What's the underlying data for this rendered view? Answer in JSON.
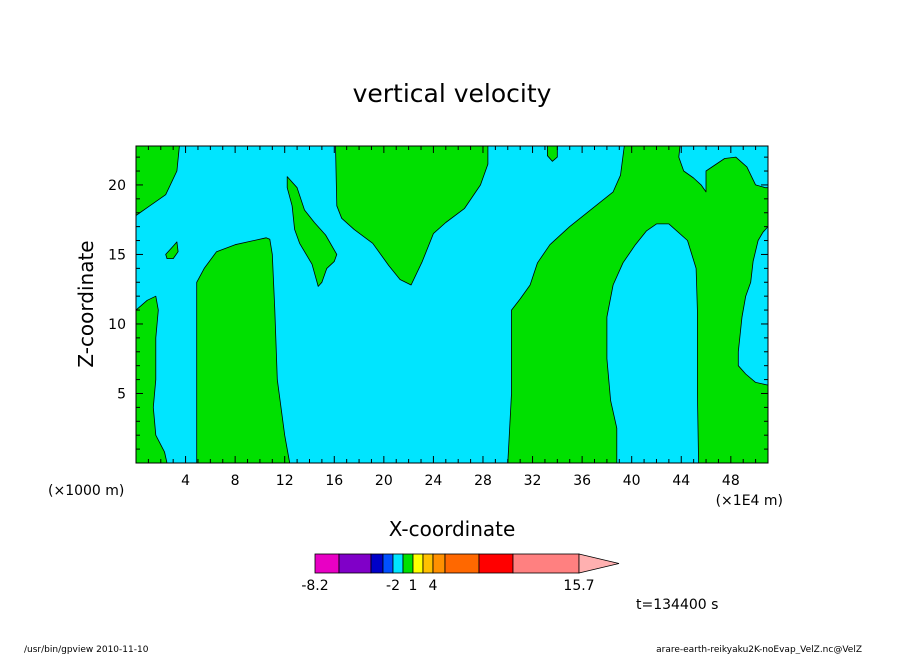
{
  "chart_data": {
    "type": "contour",
    "title": "vertical velocity",
    "xlabel": "X-coordinate",
    "ylabel": "Z-coordinate",
    "x_unit_left": "(×1000 m)",
    "x_unit_right": "(×1E4 m)",
    "xlim": [
      0,
      51
    ],
    "ylim": [
      0,
      22.8
    ],
    "x_ticks": [
      4,
      8,
      12,
      16,
      20,
      24,
      28,
      32,
      36,
      40,
      44,
      48
    ],
    "y_ticks": [
      5,
      10,
      15,
      20
    ],
    "field_colors": {
      "background": "#00e5ff",
      "positive_region": "#00e000"
    },
    "positive_regions": [
      {
        "name": "upper-left",
        "points": [
          [
            0,
            22.8
          ],
          [
            3.5,
            22.8
          ],
          [
            3.3,
            21
          ],
          [
            2.4,
            19.3
          ],
          [
            0.8,
            18.3
          ],
          [
            0,
            17.8
          ]
        ]
      },
      {
        "name": "left-strip",
        "points": [
          [
            0,
            11
          ],
          [
            0.9,
            11.7
          ],
          [
            1.6,
            12
          ],
          [
            1.8,
            11
          ],
          [
            1.6,
            9
          ],
          [
            1.6,
            6
          ],
          [
            1.4,
            4
          ],
          [
            1.6,
            2
          ],
          [
            2.3,
            0.8
          ],
          [
            2.5,
            0
          ],
          [
            0,
            0
          ]
        ]
      },
      {
        "name": "left-bubble",
        "points": [
          [
            2.4,
            15
          ],
          [
            3,
            15.6
          ],
          [
            3.3,
            15.9
          ],
          [
            3.4,
            15.2
          ],
          [
            3,
            14.7
          ],
          [
            2.5,
            14.7
          ]
        ]
      },
      {
        "name": "slab-8-12",
        "points": [
          [
            4.9,
            0
          ],
          [
            4.9,
            13
          ],
          [
            5.5,
            14
          ],
          [
            6.5,
            15.2
          ],
          [
            8,
            15.7
          ],
          [
            10.5,
            16.2
          ],
          [
            10.8,
            16.1
          ],
          [
            11,
            15
          ],
          [
            11.2,
            11
          ],
          [
            11.4,
            6
          ],
          [
            12,
            2
          ],
          [
            12.4,
            0
          ]
        ]
      },
      {
        "name": "tongue-14",
        "points": [
          [
            12.2,
            20.6
          ],
          [
            13,
            19.8
          ],
          [
            13.6,
            18.2
          ],
          [
            14.4,
            17.3
          ],
          [
            15.3,
            16.4
          ],
          [
            16.2,
            15
          ],
          [
            16,
            14.5
          ],
          [
            15.4,
            14
          ],
          [
            15,
            13
          ],
          [
            14.7,
            12.7
          ],
          [
            14.2,
            14.3
          ],
          [
            13.2,
            15.8
          ],
          [
            12.8,
            16.8
          ],
          [
            12.6,
            18.5
          ],
          [
            12.2,
            19.8
          ]
        ]
      },
      {
        "name": "top-center",
        "points": [
          [
            16.1,
            22.8
          ],
          [
            28.4,
            22.8
          ],
          [
            28.4,
            21.5
          ],
          [
            27.8,
            20
          ],
          [
            26.5,
            18.3
          ],
          [
            25,
            17.3
          ],
          [
            24,
            16.5
          ],
          [
            23.1,
            14.5
          ],
          [
            22.2,
            12.8
          ],
          [
            21.3,
            13.2
          ],
          [
            20.4,
            14.2
          ],
          [
            19.1,
            15.8
          ],
          [
            17.6,
            16.8
          ],
          [
            16.6,
            17.6
          ],
          [
            16.2,
            18.5
          ]
        ]
      },
      {
        "name": "top-bubble-33",
        "points": [
          [
            33.2,
            22.8
          ],
          [
            34,
            22.8
          ],
          [
            34,
            22
          ],
          [
            33.6,
            21.7
          ],
          [
            33.2,
            22.1
          ]
        ]
      },
      {
        "name": "right-structure",
        "points": [
          [
            30,
            0
          ],
          [
            30.3,
            5
          ],
          [
            30.3,
            11
          ],
          [
            31,
            11.8
          ],
          [
            31.8,
            12.8
          ],
          [
            32.4,
            14.4
          ],
          [
            33.4,
            15.7
          ],
          [
            35,
            17
          ],
          [
            37.1,
            18.5
          ],
          [
            38.5,
            19.5
          ],
          [
            39.1,
            20.7
          ],
          [
            39.4,
            22.8
          ],
          [
            43.9,
            22.8
          ],
          [
            43.8,
            22
          ],
          [
            44.2,
            21
          ],
          [
            45,
            20.5
          ],
          [
            45.6,
            20
          ],
          [
            46,
            19.5
          ],
          [
            46,
            21
          ],
          [
            47.5,
            21.9
          ],
          [
            48.4,
            22
          ],
          [
            49.3,
            21.3
          ],
          [
            50,
            20
          ],
          [
            50.8,
            19.8
          ],
          [
            51,
            19.8
          ],
          [
            51,
            17
          ],
          [
            50.6,
            16.6
          ],
          [
            50.2,
            16
          ],
          [
            49.8,
            14.5
          ],
          [
            49.6,
            13
          ],
          [
            49.2,
            12
          ],
          [
            48.9,
            10.5
          ],
          [
            48.6,
            8
          ],
          [
            48.6,
            7
          ],
          [
            49.2,
            6.4
          ],
          [
            50,
            5.8
          ],
          [
            51,
            5.6
          ],
          [
            51,
            0
          ],
          [
            45.4,
            0
          ],
          [
            45.3,
            5
          ],
          [
            45.3,
            11
          ],
          [
            45.2,
            14
          ],
          [
            44.5,
            16
          ],
          [
            43,
            17.2
          ],
          [
            42,
            17.2
          ],
          [
            41.2,
            16.7
          ],
          [
            40.3,
            15.7
          ],
          [
            39.3,
            14.4
          ],
          [
            38.5,
            12.8
          ],
          [
            38,
            10.5
          ],
          [
            38,
            7.5
          ],
          [
            38.3,
            4.5
          ],
          [
            38.8,
            2.5
          ],
          [
            38.8,
            0
          ]
        ]
      }
    ],
    "colorbar": {
      "colors": [
        "#e800c4",
        "#8000c8",
        "#0000c8",
        "#0050ff",
        "#00e5ff",
        "#00e000",
        "#ffff00",
        "#ffc000",
        "#ff9000",
        "#ff6800",
        "#ff0000",
        "#ff8080",
        "#ffb0b0"
      ],
      "tick_labels": [
        "-8.2",
        "-2",
        "1",
        "4",
        "15.7"
      ]
    },
    "time_label": "t=134400 s"
  },
  "footer": {
    "left": "/usr/bin/gpview   2010-11-10",
    "right": "arare-earth-reikyaku2K-noEvap_VelZ.nc@VelZ"
  }
}
